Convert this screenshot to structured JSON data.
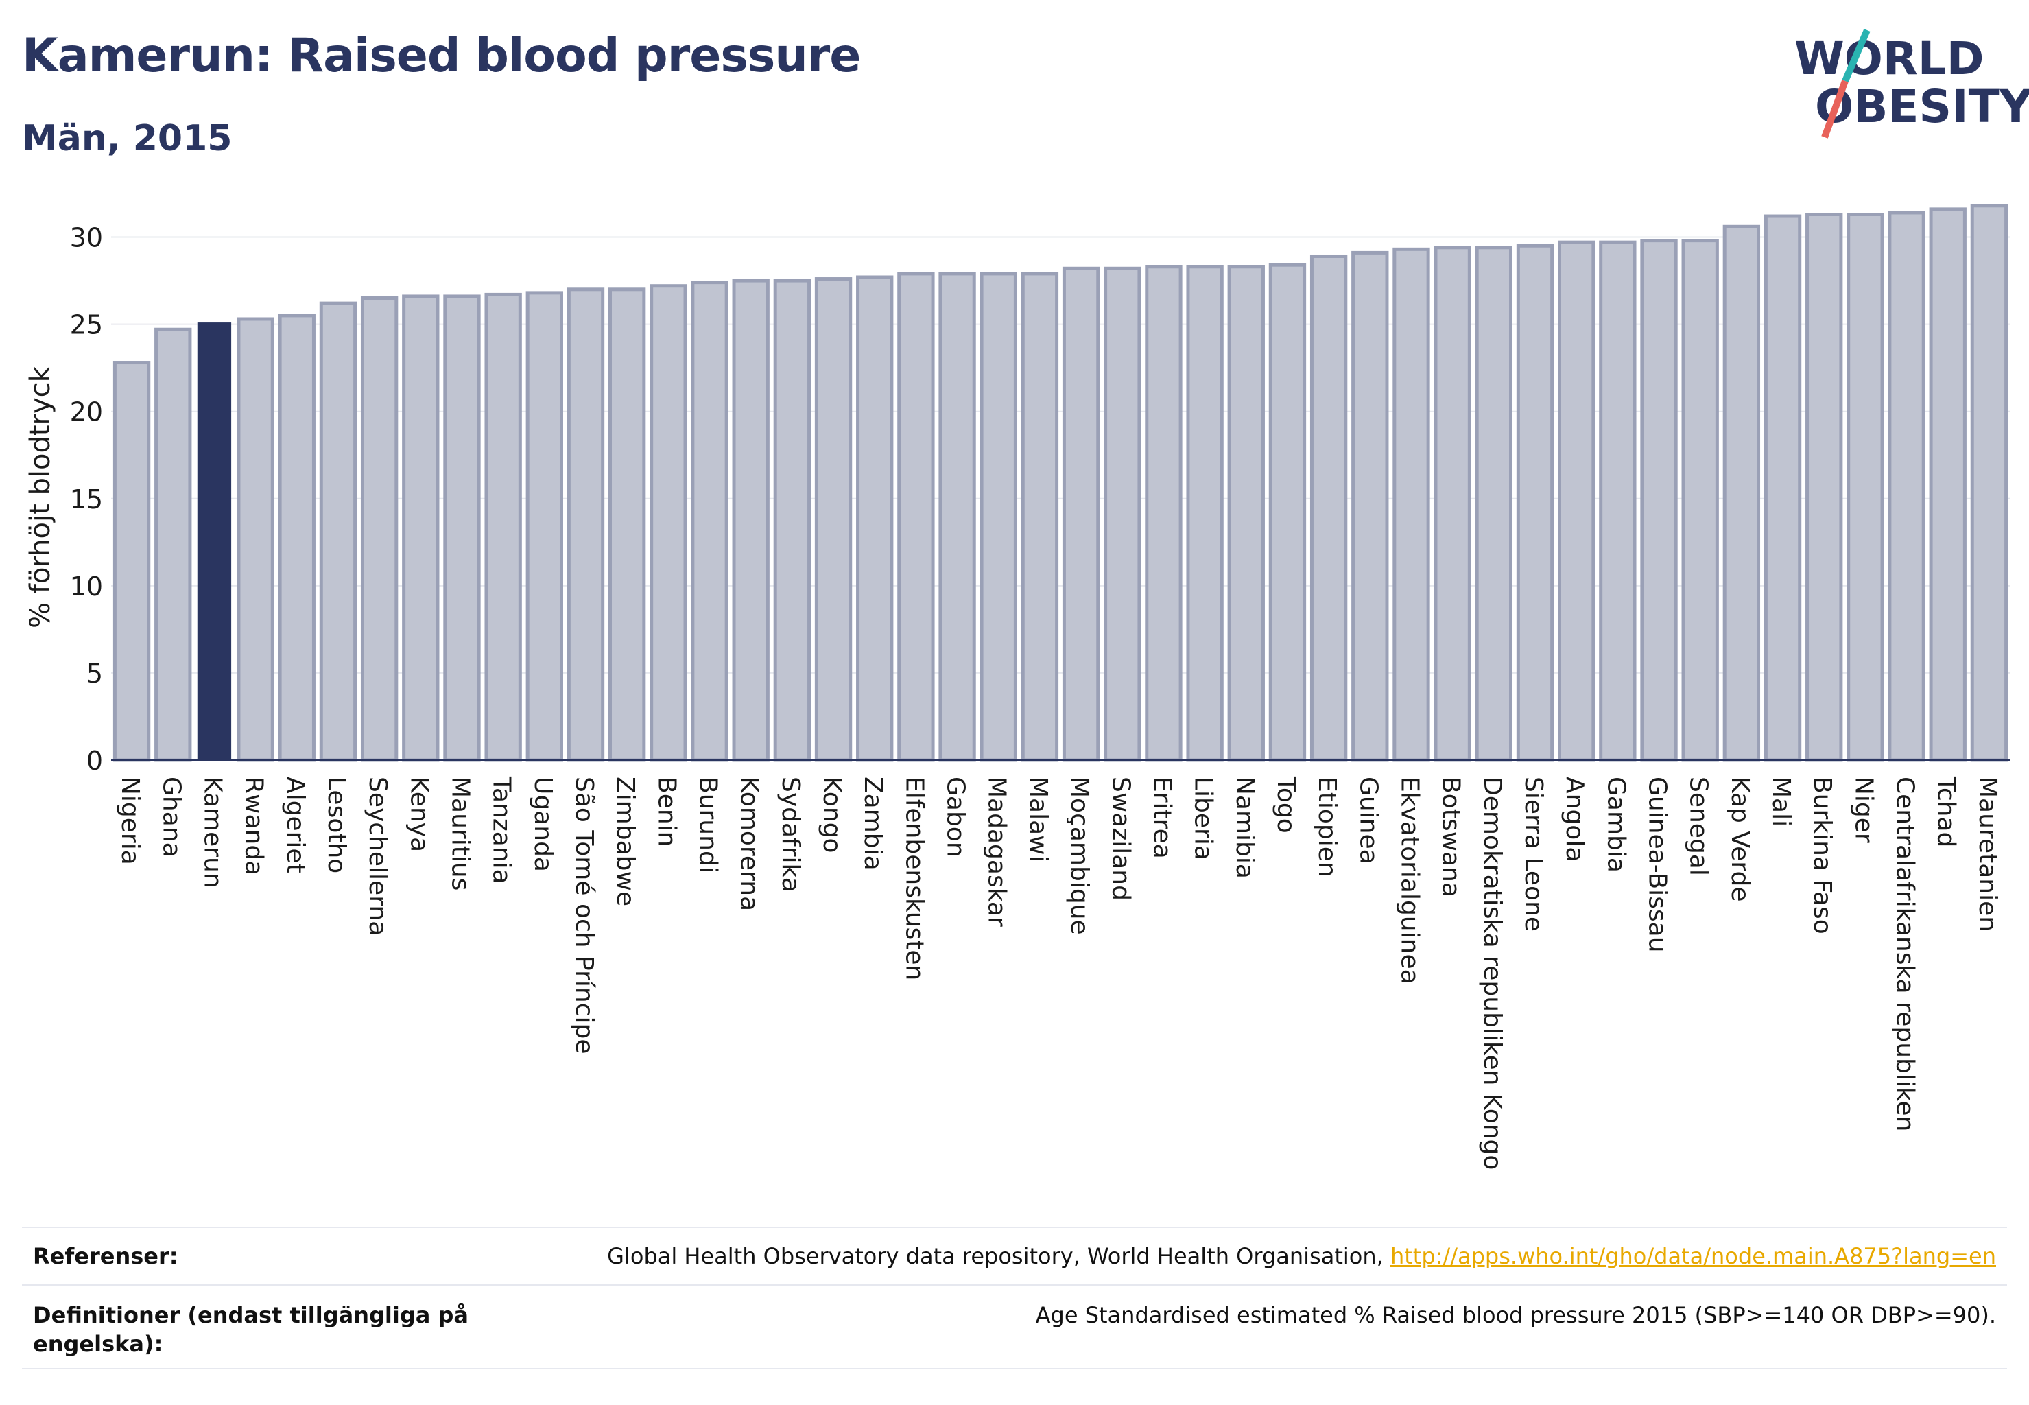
{
  "title": "Kamerun: Raised blood pressure",
  "subtitle": "Män, 2015",
  "logo": {
    "line1": "WORLD",
    "line2": "OBESITY",
    "colors": {
      "text": "#2a3560",
      "slash_top": "#2ab3b1",
      "slash_bottom": "#e8625a"
    }
  },
  "colors": {
    "bar": "#c0c4d1",
    "bar_stroke": "#9aa0b6",
    "highlight": "#2a3560",
    "axis": "#2a3560",
    "grid": "#e6e8ee"
  },
  "chart_data": {
    "type": "bar",
    "ylabel": "% förhöjt blodtryck",
    "xlabel": "",
    "ylim": [
      0,
      32.5
    ],
    "yticks": [
      0,
      5,
      10,
      15,
      20,
      25,
      30
    ],
    "grid": true,
    "highlight": "Kamerun",
    "categories": [
      "Nigeria",
      "Ghana",
      "Kamerun",
      "Rwanda",
      "Algeriet",
      "Lesotho",
      "Seychellerna",
      "Kenya",
      "Mauritius",
      "Tanzania",
      "Uganda",
      "São Tomé och Príncipe",
      "Zimbabwe",
      "Benin",
      "Burundi",
      "Komorerna",
      "Sydafrika",
      "Kongo",
      "Zambia",
      "Elfenbenskusten",
      "Gabon",
      "Madagaskar",
      "Malawi",
      "Moçambique",
      "Swaziland",
      "Eritrea",
      "Liberia",
      "Namibia",
      "Togo",
      "Etiopien",
      "Guinea",
      "Ekvatorialguinea",
      "Botswana",
      "Demokratiska republiken Kongo",
      "Sierra Leone",
      "Angola",
      "Gambia",
      "Guinea-Bissau",
      "Senegal",
      "Kap Verde",
      "Mali",
      "Burkina Faso",
      "Niger",
      "Centralafrikanska republiken",
      "Tchad",
      "Mauretanien"
    ],
    "values": [
      22.8,
      24.7,
      25.1,
      25.3,
      25.5,
      26.2,
      26.5,
      26.6,
      26.6,
      26.7,
      26.8,
      27.0,
      27.0,
      27.2,
      27.4,
      27.5,
      27.5,
      27.6,
      27.7,
      27.9,
      27.9,
      27.9,
      27.9,
      28.2,
      28.2,
      28.3,
      28.3,
      28.3,
      28.4,
      28.9,
      29.1,
      29.3,
      29.4,
      29.4,
      29.5,
      29.7,
      29.7,
      29.8,
      29.8,
      30.6,
      31.2,
      31.3,
      31.3,
      31.4,
      31.6,
      31.8
    ]
  },
  "footer": {
    "references_label": "Referenser:",
    "references_text": "Global Health Observatory data repository, World Health Organisation,",
    "references_link": "http://apps.who.int/gho/data/node.main.A875?lang=en",
    "definitions_label": "Definitioner (endast tillgängliga på engelska):",
    "definitions_text": "Age Standardised estimated % Raised blood pressure 2015 (SBP>=140 OR DBP>=90)."
  }
}
